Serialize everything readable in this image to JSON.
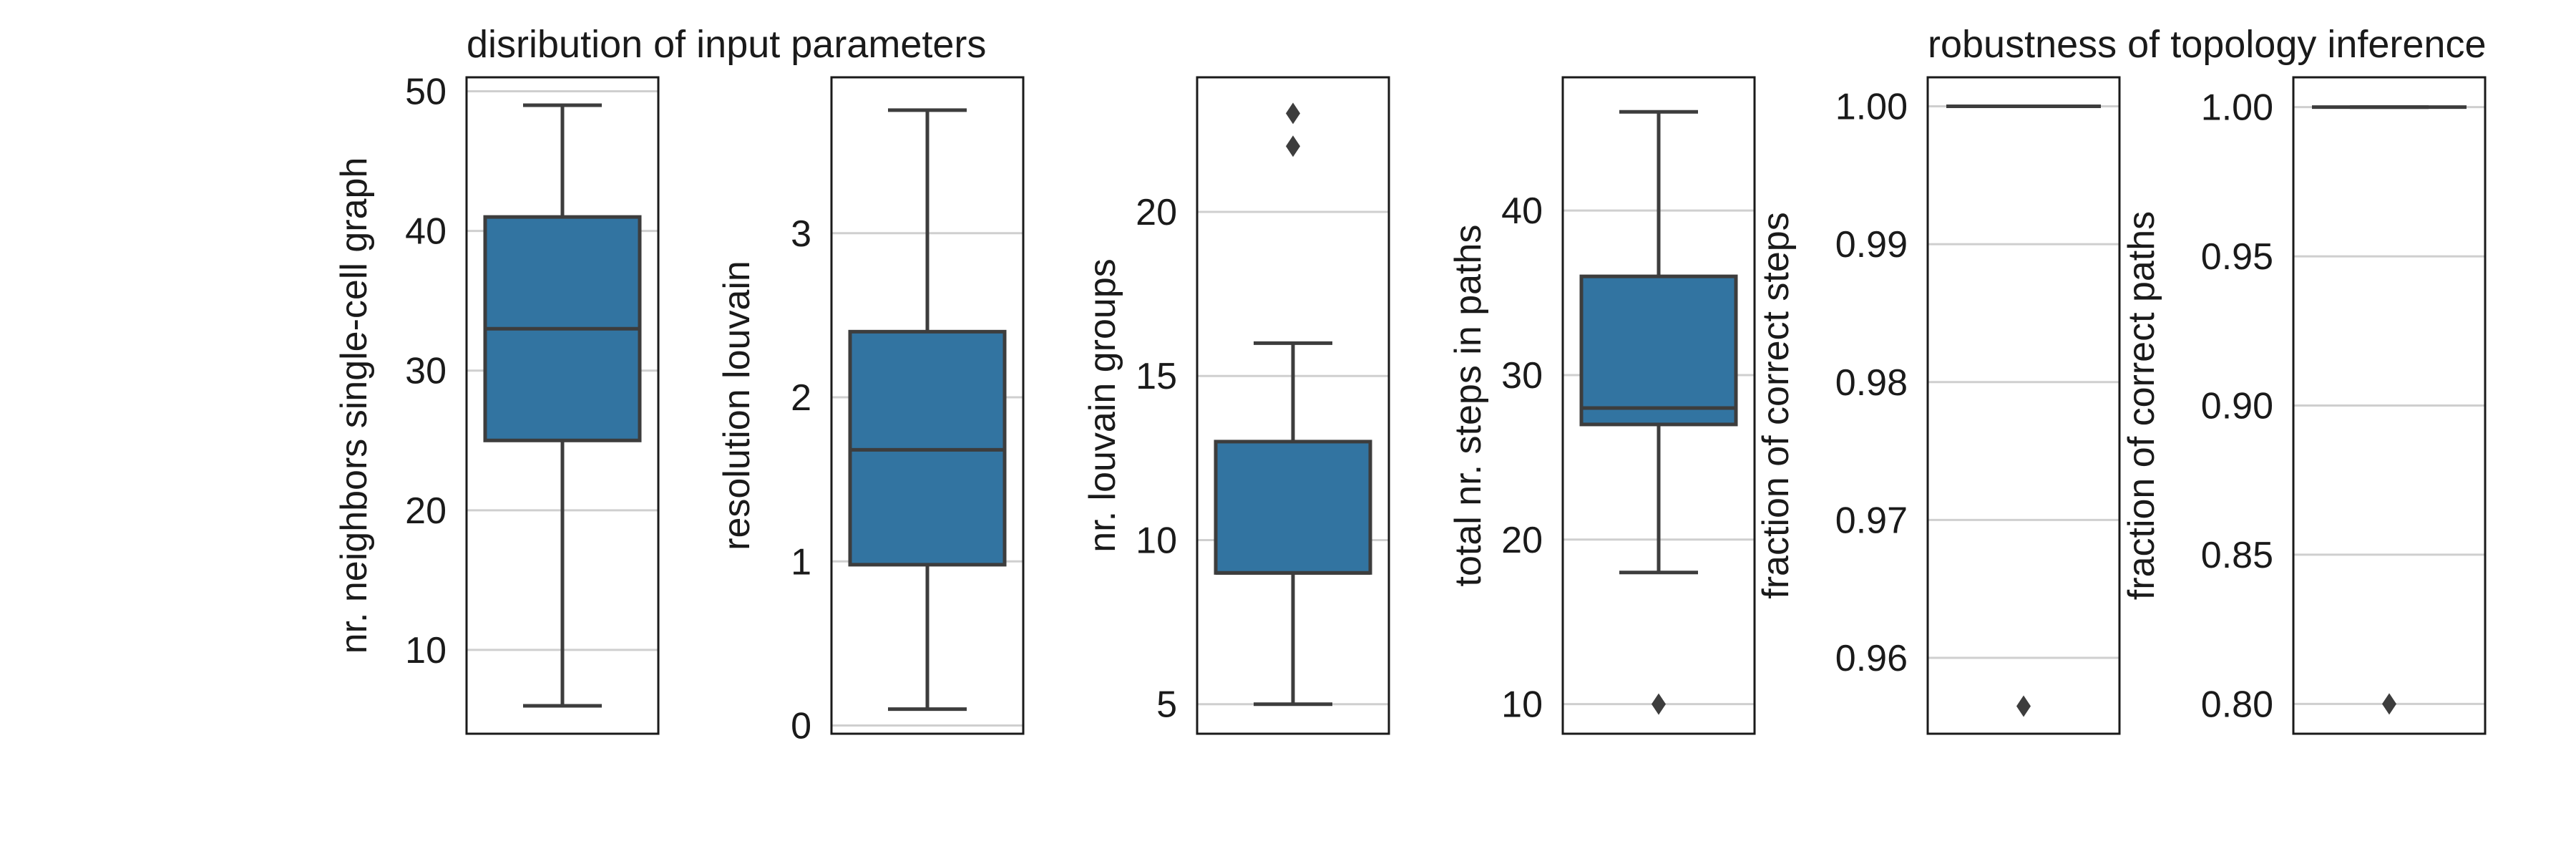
{
  "titles": {
    "left": "disribution of input parameters",
    "right": "robustness of topology inference"
  },
  "colors": {
    "box_fill": "#3274A1",
    "line": "#3d3d3d",
    "grid": "#cfcfcf",
    "frame": "#1a1a1a",
    "text": "#1a1a1a"
  },
  "chart_data": [
    {
      "type": "box",
      "ylabel": "nr. neighbors single-cell graph",
      "ylim": [
        4,
        51
      ],
      "yticks": [
        10,
        20,
        30,
        40,
        50
      ],
      "ytick_labels": [
        "10",
        "20",
        "30",
        "40",
        "50"
      ],
      "grid": true,
      "box": {
        "whisker_low": 6,
        "q1": 25,
        "median": 33,
        "q3": 41,
        "whisker_high": 49
      },
      "outliers": []
    },
    {
      "type": "box",
      "ylabel": "resolution louvain",
      "ylim": [
        -0.05,
        3.95
      ],
      "yticks": [
        0,
        1,
        2,
        3
      ],
      "ytick_labels": [
        "0",
        "1",
        "2",
        "3"
      ],
      "grid": true,
      "box": {
        "whisker_low": 0.1,
        "q1": 0.98,
        "median": 1.68,
        "q3": 2.4,
        "whisker_high": 3.75
      },
      "outliers": []
    },
    {
      "type": "box",
      "ylabel": "nr. louvain groups",
      "ylim": [
        4.1,
        24.1
      ],
      "yticks": [
        5,
        10,
        15,
        20
      ],
      "ytick_labels": [
        "5",
        "10",
        "15",
        "20"
      ],
      "grid": true,
      "box": {
        "whisker_low": 5,
        "q1": 9,
        "median": 9,
        "q3": 13,
        "whisker_high": 16
      },
      "outliers": [
        22,
        23
      ]
    },
    {
      "type": "box",
      "ylabel": "total nr. steps in paths",
      "ylim": [
        8.2,
        48.1
      ],
      "yticks": [
        10,
        20,
        30,
        40
      ],
      "ytick_labels": [
        "10",
        "20",
        "30",
        "40"
      ],
      "grid": true,
      "box": {
        "whisker_low": 18,
        "q1": 27,
        "median": 28,
        "q3": 36,
        "whisker_high": 46
      },
      "outliers": [
        10
      ]
    },
    {
      "type": "box",
      "ylabel": "fraction of correct steps",
      "ylim": [
        0.9545,
        1.0021
      ],
      "yticks": [
        0.96,
        0.97,
        0.98,
        0.99,
        1.0
      ],
      "ytick_labels": [
        "0.96",
        "0.97",
        "0.98",
        "0.99",
        "1.00"
      ],
      "grid": true,
      "box": {
        "whisker_low": 1.0,
        "q1": 1.0,
        "median": 1.0,
        "q3": 1.0,
        "whisker_high": 1.0
      },
      "outliers": [
        0.9565
      ]
    },
    {
      "type": "box",
      "ylabel": "fraction of correct paths",
      "ylim": [
        0.79,
        1.01
      ],
      "yticks": [
        0.8,
        0.85,
        0.9,
        0.95,
        1.0
      ],
      "ytick_labels": [
        "0.80",
        "0.85",
        "0.90",
        "0.95",
        "1.00"
      ],
      "grid": true,
      "box": {
        "whisker_low": 1.0,
        "q1": 1.0,
        "median": 1.0,
        "q3": 1.0,
        "whisker_high": 1.0
      },
      "outliers": [
        0.8
      ]
    }
  ]
}
